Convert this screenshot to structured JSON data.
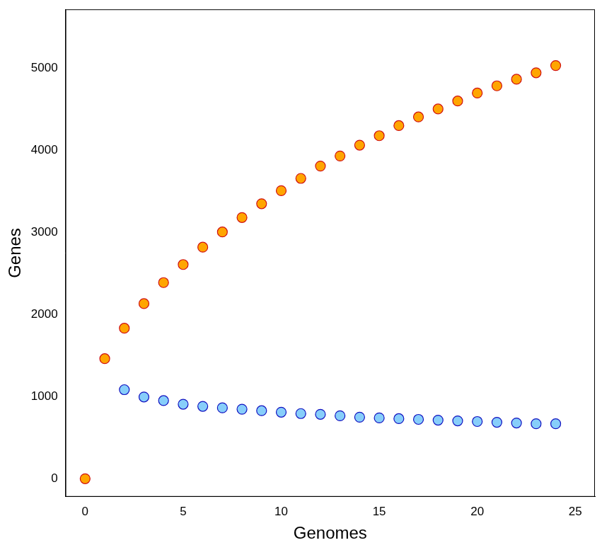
{
  "chart_data": {
    "type": "scatter",
    "x_label": "Genomes",
    "y_label": "Genes",
    "x": [
      0,
      1,
      2,
      3,
      4,
      5,
      6,
      7,
      8,
      9,
      10,
      11,
      12,
      13,
      14,
      15,
      16,
      17,
      18,
      19,
      20,
      21,
      22,
      23,
      24
    ],
    "series": [
      {
        "color": "#FFA500",
        "marker": "circle",
        "values": [
          0,
          1463,
          1834,
          2134,
          2390,
          2610,
          2822,
          3007,
          3183,
          3351,
          3510,
          3660,
          3810,
          3933,
          4065,
          4180,
          4303,
          4409,
          4506,
          4603,
          4700,
          4788,
          4868,
          4947,
          5035
        ]
      },
      {
        "color": "#87CEFA",
        "marker": "circle",
        "values": [
          null,
          null,
          1085,
          996,
          952,
          908,
          882,
          864,
          847,
          829,
          811,
          794,
          785,
          767,
          750,
          741,
          732,
          723,
          714,
          705,
          697,
          688,
          679,
          670,
          670
        ]
      }
    ],
    "xlim": [
      -1,
      26
    ],
    "xticks": [
      0,
      5,
      10,
      15,
      20,
      25
    ],
    "ylim": [
      -220,
      5720
    ],
    "yticks": [
      0,
      1000,
      2000,
      3000,
      4000,
      5000
    ],
    "grid": false
  }
}
